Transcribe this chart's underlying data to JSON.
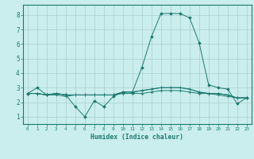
{
  "xlabel": "Humidex (Indice chaleur)",
  "ylabel": "",
  "background_color": "#caeeed",
  "grid_color": "#aacccc",
  "line_color": "#1a7a6e",
  "xlim": [
    -0.5,
    23.5
  ],
  "ylim": [
    0.5,
    8.7
  ],
  "xticks": [
    0,
    1,
    2,
    3,
    4,
    5,
    6,
    7,
    8,
    9,
    10,
    11,
    12,
    13,
    14,
    15,
    16,
    17,
    18,
    19,
    20,
    21,
    22,
    23
  ],
  "yticks": [
    1,
    2,
    3,
    4,
    5,
    6,
    7,
    8
  ],
  "series": [
    [
      2.6,
      3.0,
      2.5,
      2.6,
      2.5,
      1.7,
      1.0,
      2.1,
      1.7,
      2.4,
      2.7,
      2.7,
      4.4,
      6.5,
      8.1,
      8.1,
      8.1,
      7.8,
      6.1,
      3.2,
      3.0,
      2.9,
      1.9,
      2.3
    ],
    [
      2.6,
      2.6,
      2.5,
      2.6,
      2.5,
      2.5,
      2.5,
      2.5,
      2.5,
      2.5,
      2.7,
      2.7,
      2.8,
      2.9,
      3.0,
      3.0,
      3.0,
      2.9,
      2.7,
      2.6,
      2.6,
      2.5,
      2.3,
      2.3
    ],
    [
      2.6,
      2.6,
      2.5,
      2.6,
      2.5,
      2.5,
      2.5,
      2.5,
      2.5,
      2.5,
      2.7,
      2.7,
      2.8,
      2.9,
      3.0,
      3.0,
      3.0,
      2.9,
      2.7,
      2.6,
      2.6,
      2.5,
      2.3,
      2.3
    ],
    [
      2.6,
      2.6,
      2.5,
      2.5,
      2.4,
      2.5,
      2.5,
      2.5,
      2.5,
      2.5,
      2.6,
      2.6,
      2.6,
      2.7,
      2.8,
      2.8,
      2.8,
      2.7,
      2.6,
      2.6,
      2.5,
      2.4,
      2.3,
      2.3
    ]
  ]
}
